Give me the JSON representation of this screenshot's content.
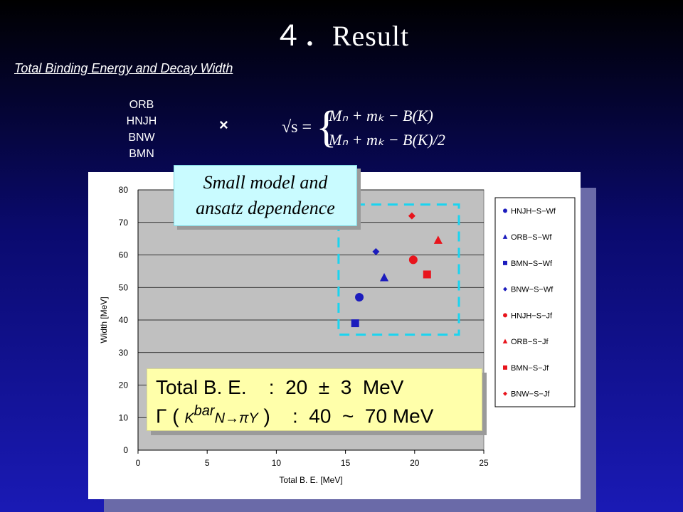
{
  "slide": {
    "title": "４．Result",
    "subtitle": "Total Binding Energy and Decay Width",
    "models": [
      "ORB",
      "HNJH",
      "BNW",
      "BMN"
    ],
    "times": "×",
    "formula": {
      "lhs": "√s =",
      "line1": "Mₙ + mₖ − B(K)",
      "line2": "Mₙ + mₖ − B(K)/2"
    },
    "callout": {
      "line1": "Small model and",
      "line2": "ansatz dependence"
    },
    "result": {
      "row1": "Total B. E.    :  20  ±  3  MeV",
      "row2_prefix": "Γ ( ",
      "row2_k": "K",
      "row2_sup": "bar",
      "row2_rest": "N→πY",
      "row2_suffix": " )    :  40  ~  70 MeV"
    }
  },
  "chart_data": {
    "type": "scatter",
    "xlabel": "Total B. E. [MeV]",
    "ylabel": "Width [MeV]",
    "xlim": [
      0,
      25
    ],
    "ylim": [
      0,
      80
    ],
    "xticks": [
      0,
      5,
      10,
      15,
      20,
      25
    ],
    "yticks": [
      0,
      10,
      20,
      30,
      40,
      50,
      60,
      70,
      80
    ],
    "grid": "horizontal",
    "legend_position": "right",
    "series": [
      {
        "name": "HNJH−S−Wf",
        "marker": "circle",
        "color": "#1c1cbd",
        "x": 16.0,
        "y": 47.0
      },
      {
        "name": "ORB−S−Wf",
        "marker": "triangle",
        "color": "#1c1cbd",
        "x": 17.8,
        "y": 53.0
      },
      {
        "name": "BMN−S−Wf",
        "marker": "square",
        "color": "#1c1cbd",
        "x": 15.7,
        "y": 39.0
      },
      {
        "name": "BNW−S−Wf",
        "marker": "diamond",
        "color": "#1c1cbd",
        "x": 17.2,
        "y": 61.0
      },
      {
        "name": "HNJH−S−Jf",
        "marker": "circle",
        "color": "#e8141c",
        "x": 19.9,
        "y": 58.5
      },
      {
        "name": "ORB−S−Jf",
        "marker": "triangle",
        "color": "#e8141c",
        "x": 21.7,
        "y": 64.5
      },
      {
        "name": "BMN−S−Jf",
        "marker": "square",
        "color": "#e8141c",
        "x": 20.9,
        "y": 54.0
      },
      {
        "name": "BNW−S−Jf",
        "marker": "diamond",
        "color": "#e8141c",
        "x": 19.8,
        "y": 72.0
      }
    ],
    "highlight_region": {
      "x": [
        14.5,
        23.2
      ],
      "y": [
        35.5,
        75.5
      ],
      "color": "#1ad4f0"
    }
  }
}
